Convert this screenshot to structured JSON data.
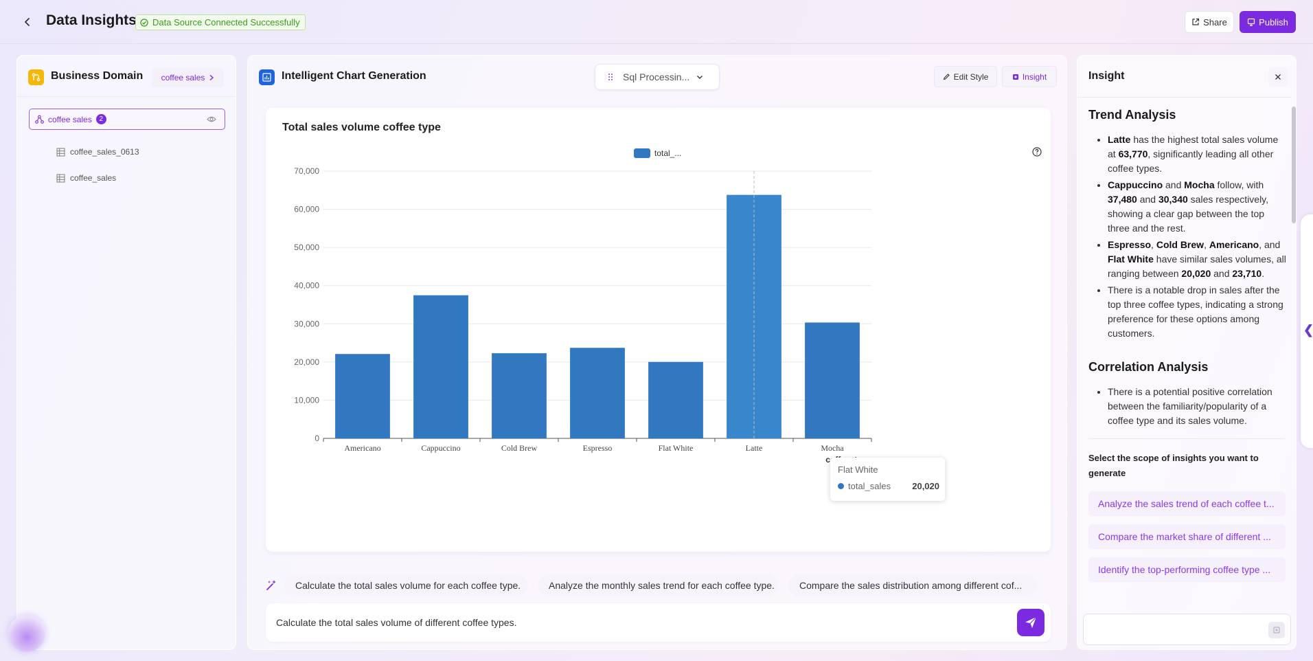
{
  "header": {
    "title": "Data Insights",
    "status": "Data Source Connected Successfully",
    "share_label": "Share",
    "publish_label": "Publish"
  },
  "left_panel": {
    "title": "Business Domain",
    "domain_select": "coffee sales",
    "tree_root": {
      "label": "coffee sales",
      "count": "2"
    },
    "tables": [
      "coffee_sales_0613",
      "coffee_sales"
    ]
  },
  "center_panel": {
    "title": "Intelligent Chart Generation",
    "sql_select": "Sql Processin...",
    "edit_style_label": "Edit Style",
    "insight_label": "Insight",
    "tooltip": {
      "title": "Flat White",
      "series": "total_sales",
      "value": "20,020"
    },
    "suggestions": [
      "Calculate the total sales volume for each coffee type.",
      "Analyze the monthly sales trend for each coffee type.",
      "Compare the sales distribution among different cof..."
    ],
    "input_value": "Calculate the total sales volume of different coffee types."
  },
  "chart_data": {
    "type": "bar",
    "title": "Total sales volume coffee type",
    "legend": [
      "total_..."
    ],
    "xlabel": "coffee_type",
    "ylabel": "",
    "categories": [
      "Americano",
      "Cappuccino",
      "Cold Brew",
      "Espresso",
      "Flat White",
      "Latte",
      "Mocha"
    ],
    "series": [
      {
        "name": "total_...",
        "values": [
          22100,
          37480,
          22300,
          23710,
          20020,
          63770,
          30340
        ]
      }
    ],
    "ylim": [
      0,
      70000
    ],
    "yticks": [
      "0",
      "10,000",
      "20,000",
      "30,000",
      "40,000",
      "50,000",
      "60,000",
      "70,000"
    ],
    "grid": true,
    "bar_color": "#3278c0",
    "highlighted_bar_color": "#3a86cc"
  },
  "right_panel": {
    "title": "Insight",
    "sections": [
      {
        "heading": "Trend Analysis",
        "bullets": [
          "<b>Latte</b> has the highest total sales volume at <b>63,770</b>, significantly leading all other coffee types.",
          "<b>Cappuccino</b> and <b>Mocha</b> follow, with <b>37,480</b> and <b>30,340</b> sales respectively, showing a clear gap between the top three and the rest.",
          "<b>Espresso</b>, <b>Cold Brew</b>, <b>Americano</b>, and <b>Flat White</b> have similar sales volumes, all ranging between <b>20,020</b> and <b>23,710</b>.",
          "There is a notable drop in sales after the top three coffee types, indicating a strong preference for these options among customers."
        ]
      },
      {
        "heading": "Correlation Analysis",
        "bullets": [
          "There is a potential positive correlation between the familiarity/popularity of a coffee type and its sales volume."
        ]
      }
    ],
    "scope_label": "Select the scope of insights you want to generate",
    "scope_options": [
      "Analyze the sales trend of each coffee t...",
      "Compare the market share of different ...",
      "Identify the top-performing coffee type ..."
    ]
  },
  "colors": {
    "accent": "#7c2ae0",
    "success": "#3a9a1a",
    "domain_icon": "#f5b70a",
    "chart_icon": "#1e63e0"
  }
}
